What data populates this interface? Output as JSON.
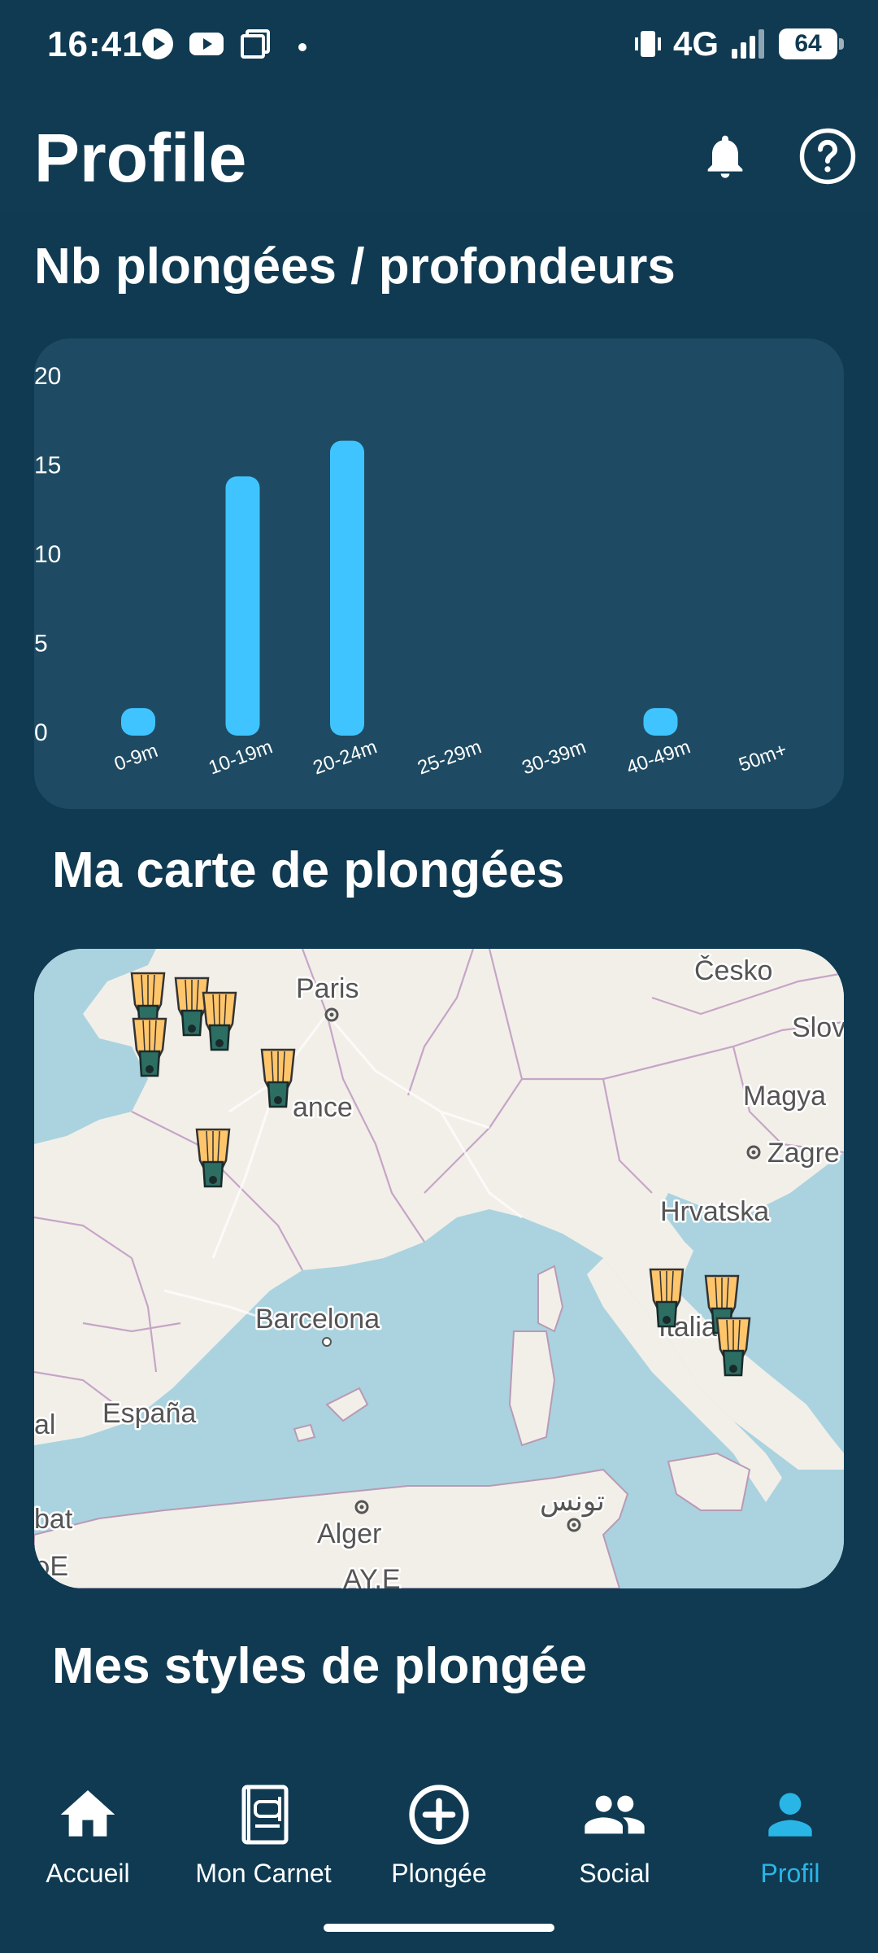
{
  "status_bar": {
    "time": "16:41",
    "network": "4G",
    "battery": "64",
    "icons": [
      "play-circle-icon",
      "youtube-icon",
      "copy-icon",
      "dot-icon",
      "vibrate-icon",
      "signal-icon",
      "battery-icon"
    ]
  },
  "header": {
    "title": "Profile",
    "icons": [
      "bell-icon",
      "help-icon"
    ]
  },
  "depth_section": {
    "title": "Nb plongées / profondeurs"
  },
  "chart_data": {
    "type": "bar",
    "categories": [
      "0-9m",
      "10-19m",
      "20-24m",
      "25-29m",
      "30-39m",
      "40-49m",
      "50m+"
    ],
    "values": [
      1,
      14,
      16,
      0,
      0,
      1,
      0
    ],
    "ylim": [
      0,
      20
    ],
    "yticks": [
      "20",
      "15",
      "10",
      "5",
      "0"
    ],
    "title": "",
    "xlabel": "",
    "ylabel": "",
    "bar_color": "#40c4ff",
    "grid": false
  },
  "map_section": {
    "title": "Ma carte de plongées",
    "labels": {
      "paris": "Paris",
      "france": "ance",
      "cesko": "Česko",
      "slov": "Slov",
      "magya": "Magya",
      "zagreb": "Zagre",
      "hrvatska": "Hrvatska",
      "italia": "Italia",
      "barcelona": "Barcelona",
      "espana": "España",
      "al": "al",
      "tunis": "تونس",
      "alger": "Alger",
      "bat": "bat",
      "bottom1": "ρE",
      "bottom2": "ΑΥ.Ε"
    },
    "marker_icon": "fins-icon"
  },
  "styles_section": {
    "title": "Mes styles de plongée"
  },
  "bottom_nav": {
    "items": [
      {
        "label": "Accueil",
        "icon": "home-icon"
      },
      {
        "label": "Mon Carnet",
        "icon": "logbook-icon"
      },
      {
        "label": "Plongée",
        "icon": "add-circle-icon"
      },
      {
        "label": "Social",
        "icon": "people-icon"
      },
      {
        "label": "Profil",
        "icon": "person-icon"
      }
    ],
    "active_color": "#29b6e6"
  }
}
